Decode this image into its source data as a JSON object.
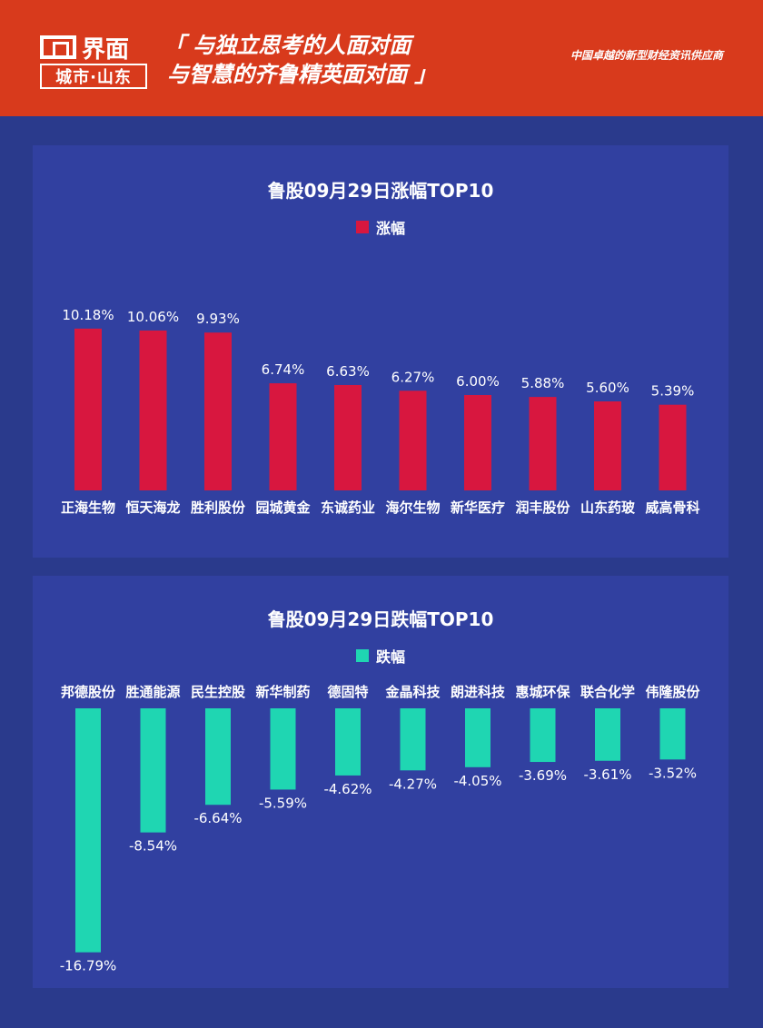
{
  "header": {
    "logo_top": "界面",
    "logo_bottom": "城市·山东",
    "slogan_line1": "「 与独立思考的人面对面",
    "slogan_line2": "与智慧的齐鲁精英面对面 」",
    "tagline": "中国卓越的新型财经资讯供应商"
  },
  "colors": {
    "header_bg": "#d83a1c",
    "panel_bg": "#3140a0",
    "gain_bar": "#d8173f",
    "loss_bar": "#1fd6b2"
  },
  "chart_data": [
    {
      "type": "bar",
      "title": "鲁股09月29日涨幅TOP10",
      "legend": "涨幅",
      "categories": [
        "正海生物",
        "恒天海龙",
        "胜利股份",
        "园城黄金",
        "东诚药业",
        "海尔生物",
        "新华医疗",
        "润丰股份",
        "山东药玻",
        "威高骨科"
      ],
      "values": [
        10.18,
        10.06,
        9.93,
        6.74,
        6.63,
        6.27,
        6.0,
        5.88,
        5.6,
        5.39
      ],
      "labels": [
        "10.18%",
        "10.06%",
        "9.93%",
        "6.74%",
        "6.63%",
        "6.27%",
        "6.00%",
        "5.88%",
        "5.60%",
        "5.39%"
      ],
      "unit": "%"
    },
    {
      "type": "bar",
      "title": "鲁股09月29日跌幅TOP10",
      "legend": "跌幅",
      "categories": [
        "邦德股份",
        "胜通能源",
        "民生控股",
        "新华制药",
        "德固特",
        "金晶科技",
        "朗进科技",
        "惠城环保",
        "联合化学",
        "伟隆股份"
      ],
      "values": [
        -16.79,
        -8.54,
        -6.64,
        -5.59,
        -4.62,
        -4.27,
        -4.05,
        -3.69,
        -3.61,
        -3.52
      ],
      "labels": [
        "-16.79%",
        "-8.54%",
        "-6.64%",
        "-5.59%",
        "-4.62%",
        "-4.27%",
        "-4.05%",
        "-3.69%",
        "-3.61%",
        "-3.52%"
      ],
      "unit": "%"
    }
  ]
}
